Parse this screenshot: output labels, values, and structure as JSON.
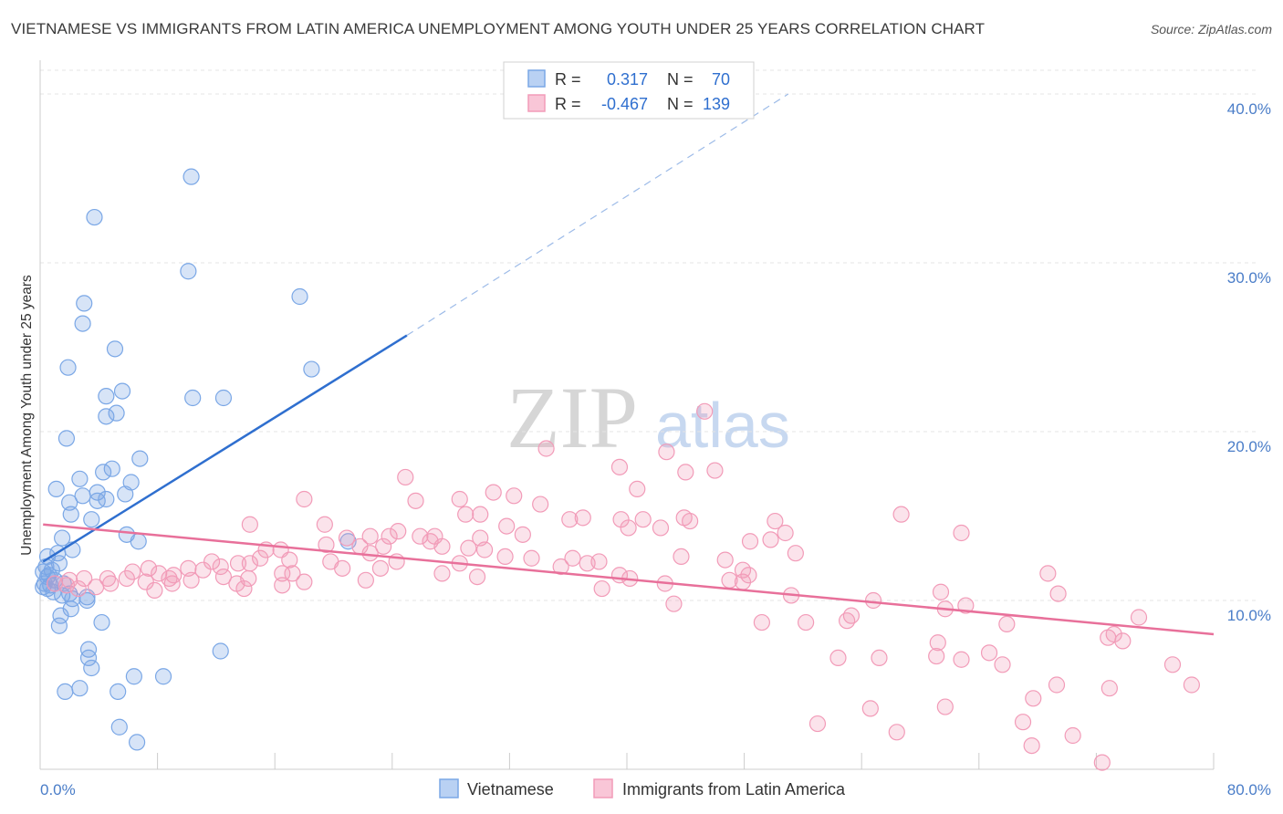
{
  "title": "VIETNAMESE VS IMMIGRANTS FROM LATIN AMERICA UNEMPLOYMENT AMONG YOUTH UNDER 25 YEARS CORRELATION CHART",
  "source": "Source: ZipAtlas.com",
  "watermark": {
    "zip": "ZIP",
    "atlas": "atlas"
  },
  "legend_top": {
    "rows": [
      {
        "r_label": "R =",
        "r_value": "0.317",
        "n_label": "N =",
        "n_value": "70",
        "color": "#7aa7e6"
      },
      {
        "r_label": "R =",
        "r_value": "-0.467",
        "n_label": "N =",
        "n_value": "139",
        "color": "#f29bb8"
      }
    ]
  },
  "chart_data": {
    "type": "scatter",
    "title": "VIETNAMESE VS IMMIGRANTS FROM LATIN AMERICA UNEMPLOYMENT AMONG YOUTH UNDER 25 YEARS CORRELATION CHART",
    "xlabel": "",
    "ylabel": "Unemployment Among Youth under 25 years",
    "xlim": [
      0,
      80
    ],
    "ylim": [
      0,
      42
    ],
    "x_tick_labels": [
      "0.0%",
      "80.0%"
    ],
    "y_ticks": [
      10,
      20,
      30,
      40
    ],
    "y_tick_labels": [
      "10.0%",
      "20.0%",
      "30.0%",
      "40.0%"
    ],
    "grid": true,
    "series": [
      {
        "name": "Vietnamese",
        "color": "#7aa7e6",
        "line_color": "#2f6fcf",
        "R": 0.317,
        "N": 70,
        "trend": {
          "x0": 0.2,
          "y0": 12.3,
          "x1": 25.0,
          "y1": 25.7,
          "dash_to_x": 51.0,
          "dash_to_y": 40.0
        },
        "points": [
          [
            10.3,
            35.1
          ],
          [
            3.7,
            32.7
          ],
          [
            10.1,
            29.5
          ],
          [
            17.7,
            28.0
          ],
          [
            3.0,
            27.6
          ],
          [
            2.9,
            26.4
          ],
          [
            5.1,
            24.9
          ],
          [
            1.9,
            23.8
          ],
          [
            18.5,
            23.7
          ],
          [
            5.6,
            22.4
          ],
          [
            4.5,
            22.1
          ],
          [
            10.4,
            22.0
          ],
          [
            12.5,
            22.0
          ],
          [
            4.5,
            20.9
          ],
          [
            5.2,
            21.1
          ],
          [
            1.8,
            19.6
          ],
          [
            6.8,
            18.4
          ],
          [
            4.9,
            17.8
          ],
          [
            4.3,
            17.6
          ],
          [
            2.7,
            17.2
          ],
          [
            6.2,
            17.0
          ],
          [
            1.1,
            16.6
          ],
          [
            3.9,
            16.4
          ],
          [
            2.9,
            16.2
          ],
          [
            5.8,
            16.3
          ],
          [
            3.9,
            15.9
          ],
          [
            4.5,
            16.0
          ],
          [
            2.0,
            15.8
          ],
          [
            2.1,
            15.1
          ],
          [
            3.5,
            14.8
          ],
          [
            5.9,
            13.9
          ],
          [
            1.5,
            13.7
          ],
          [
            6.7,
            13.5
          ],
          [
            21.0,
            13.5
          ],
          [
            2.2,
            13.0
          ],
          [
            1.2,
            12.8
          ],
          [
            0.5,
            12.6
          ],
          [
            1.3,
            12.2
          ],
          [
            0.4,
            12.0
          ],
          [
            0.8,
            11.8
          ],
          [
            0.2,
            11.7
          ],
          [
            0.5,
            11.4
          ],
          [
            1.0,
            11.2
          ],
          [
            0.3,
            11.0
          ],
          [
            0.7,
            10.9
          ],
          [
            0.5,
            10.7
          ],
          [
            0.2,
            10.8
          ],
          [
            0.9,
            10.5
          ],
          [
            1.5,
            10.3
          ],
          [
            2.0,
            10.4
          ],
          [
            3.2,
            10.2
          ],
          [
            2.2,
            10.1
          ],
          [
            3.2,
            10.0
          ],
          [
            2.1,
            9.5
          ],
          [
            1.4,
            9.1
          ],
          [
            1.3,
            8.5
          ],
          [
            4.2,
            8.7
          ],
          [
            3.3,
            7.1
          ],
          [
            3.3,
            6.6
          ],
          [
            12.3,
            7.0
          ],
          [
            3.5,
            6.0
          ],
          [
            6.4,
            5.5
          ],
          [
            8.4,
            5.5
          ],
          [
            1.7,
            4.6
          ],
          [
            2.7,
            4.8
          ],
          [
            5.3,
            4.6
          ],
          [
            5.4,
            2.5
          ],
          [
            6.6,
            1.6
          ],
          [
            0.6,
            11.5
          ],
          [
            1.6,
            11.0
          ]
        ]
      },
      {
        "name": "Immigrants from Latin America",
        "color": "#f29bb8",
        "line_color": "#e8709a",
        "R": -0.467,
        "N": 139,
        "trend": {
          "x0": 0.2,
          "y0": 14.5,
          "x1": 80.0,
          "y1": 8.0
        },
        "points": [
          [
            45.3,
            21.2
          ],
          [
            34.5,
            19.0
          ],
          [
            42.7,
            18.8
          ],
          [
            39.5,
            17.9
          ],
          [
            44.0,
            17.6
          ],
          [
            46.0,
            17.7
          ],
          [
            24.9,
            17.3
          ],
          [
            30.9,
            16.4
          ],
          [
            40.7,
            16.6
          ],
          [
            18.0,
            16.0
          ],
          [
            25.6,
            15.9
          ],
          [
            28.6,
            16.0
          ],
          [
            32.3,
            16.2
          ],
          [
            34.1,
            15.7
          ],
          [
            29.0,
            15.1
          ],
          [
            30.0,
            15.1
          ],
          [
            14.3,
            14.5
          ],
          [
            19.4,
            14.5
          ],
          [
            31.8,
            14.4
          ],
          [
            36.1,
            14.8
          ],
          [
            37.0,
            14.9
          ],
          [
            39.6,
            14.8
          ],
          [
            41.1,
            14.8
          ],
          [
            43.9,
            14.9
          ],
          [
            44.3,
            14.7
          ],
          [
            50.1,
            14.7
          ],
          [
            58.7,
            15.1
          ],
          [
            24.4,
            14.1
          ],
          [
            20.9,
            13.7
          ],
          [
            22.5,
            13.8
          ],
          [
            23.8,
            13.8
          ],
          [
            25.9,
            13.8
          ],
          [
            26.9,
            13.8
          ],
          [
            30.0,
            13.7
          ],
          [
            32.9,
            13.9
          ],
          [
            40.1,
            14.3
          ],
          [
            42.3,
            14.3
          ],
          [
            50.8,
            14.0
          ],
          [
            62.8,
            14.0
          ],
          [
            19.5,
            13.3
          ],
          [
            21.8,
            13.2
          ],
          [
            23.4,
            13.2
          ],
          [
            26.6,
            13.5
          ],
          [
            27.4,
            13.2
          ],
          [
            29.2,
            13.1
          ],
          [
            30.3,
            13.0
          ],
          [
            48.4,
            13.5
          ],
          [
            49.8,
            13.6
          ],
          [
            15.4,
            13.0
          ],
          [
            16.4,
            13.0
          ],
          [
            22.5,
            12.8
          ],
          [
            31.7,
            12.6
          ],
          [
            33.5,
            12.5
          ],
          [
            36.3,
            12.5
          ],
          [
            38.1,
            12.3
          ],
          [
            43.7,
            12.6
          ],
          [
            46.7,
            12.4
          ],
          [
            51.5,
            12.8
          ],
          [
            11.7,
            12.3
          ],
          [
            13.5,
            12.2
          ],
          [
            15.0,
            12.5
          ],
          [
            17.0,
            12.4
          ],
          [
            19.8,
            12.3
          ],
          [
            24.3,
            12.3
          ],
          [
            28.6,
            12.2
          ],
          [
            37.3,
            12.2
          ],
          [
            35.5,
            12.0
          ],
          [
            7.4,
            11.9
          ],
          [
            10.1,
            11.9
          ],
          [
            12.3,
            12.0
          ],
          [
            14.3,
            12.2
          ],
          [
            20.6,
            11.9
          ],
          [
            23.2,
            11.9
          ],
          [
            6.3,
            11.7
          ],
          [
            8.1,
            11.6
          ],
          [
            9.1,
            11.5
          ],
          [
            11.1,
            11.8
          ],
          [
            16.5,
            11.6
          ],
          [
            17.2,
            11.6
          ],
          [
            27.4,
            11.6
          ],
          [
            29.8,
            11.4
          ],
          [
            39.5,
            11.5
          ],
          [
            47.9,
            11.8
          ],
          [
            48.3,
            11.5
          ],
          [
            40.2,
            11.3
          ],
          [
            47.0,
            11.2
          ],
          [
            68.7,
            11.6
          ],
          [
            2.0,
            11.2
          ],
          [
            3.0,
            11.3
          ],
          [
            4.6,
            11.3
          ],
          [
            5.9,
            11.3
          ],
          [
            7.2,
            11.1
          ],
          [
            8.8,
            11.3
          ],
          [
            10.3,
            11.2
          ],
          [
            12.5,
            11.4
          ],
          [
            14.2,
            11.3
          ],
          [
            18.0,
            11.1
          ],
          [
            22.2,
            11.2
          ],
          [
            1.0,
            11.0
          ],
          [
            1.8,
            10.9
          ],
          [
            3.8,
            10.8
          ],
          [
            4.8,
            11.0
          ],
          [
            9.0,
            11.0
          ],
          [
            13.4,
            11.0
          ],
          [
            16.5,
            10.9
          ],
          [
            42.6,
            11.0
          ],
          [
            47.9,
            11.1
          ],
          [
            2.6,
            10.7
          ],
          [
            7.8,
            10.6
          ],
          [
            13.9,
            10.7
          ],
          [
            38.3,
            10.7
          ],
          [
            61.4,
            10.5
          ],
          [
            69.4,
            10.4
          ],
          [
            51.2,
            10.3
          ],
          [
            56.8,
            10.0
          ],
          [
            43.2,
            9.8
          ],
          [
            63.1,
            9.7
          ],
          [
            61.7,
            9.5
          ],
          [
            55.3,
            9.1
          ],
          [
            74.9,
            9.0
          ],
          [
            49.2,
            8.7
          ],
          [
            52.2,
            8.7
          ],
          [
            55.0,
            8.8
          ],
          [
            65.9,
            8.6
          ],
          [
            61.2,
            7.5
          ],
          [
            72.8,
            7.8
          ],
          [
            73.2,
            8.0
          ],
          [
            73.8,
            7.6
          ],
          [
            54.4,
            6.6
          ],
          [
            57.2,
            6.6
          ],
          [
            61.1,
            6.7
          ],
          [
            62.8,
            6.5
          ],
          [
            64.7,
            6.9
          ],
          [
            69.3,
            5.0
          ],
          [
            72.9,
            4.8
          ],
          [
            78.5,
            5.0
          ],
          [
            65.6,
            6.2
          ],
          [
            56.6,
            3.6
          ],
          [
            67.7,
            4.2
          ],
          [
            77.2,
            6.2
          ],
          [
            61.7,
            3.7
          ],
          [
            53.0,
            2.7
          ],
          [
            58.4,
            2.2
          ],
          [
            67.6,
            1.4
          ],
          [
            70.4,
            2.0
          ],
          [
            72.4,
            0.4
          ],
          [
            67.0,
            2.8
          ]
        ]
      }
    ]
  },
  "bottom_legend": {
    "items": [
      "Vietnamese",
      "Immigrants from Latin America"
    ]
  }
}
